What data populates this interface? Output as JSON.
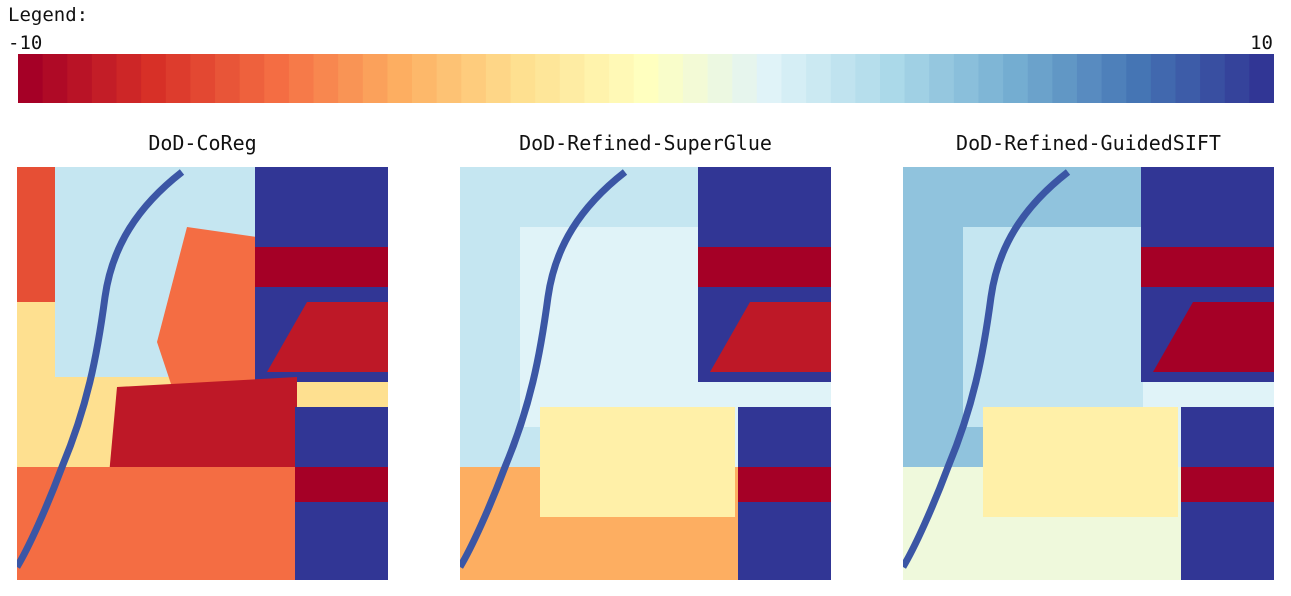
{
  "legend": {
    "title": "Legend:",
    "min_label": "-10",
    "max_label": "10",
    "min": -10,
    "max": 10,
    "steps": 51,
    "colormap": "RdYlBu"
  },
  "chart_data": {
    "type": "heatmap",
    "colorscale": {
      "min": -10,
      "max": 10,
      "colormap": "RdYlBu"
    },
    "panels": [
      {
        "title": "DoD-CoReg",
        "overall_bias": "red",
        "regions": [
          {
            "area": "top-left strip",
            "value": -7
          },
          {
            "area": "upper-center",
            "value": 3
          },
          {
            "area": "center-upper-right",
            "value": -6
          },
          {
            "area": "top-right block",
            "value": 10
          },
          {
            "area": "upper-right band",
            "value": -10
          },
          {
            "area": "right triangle",
            "value": -9
          },
          {
            "area": "center-lower",
            "value": -9
          },
          {
            "area": "lower-left",
            "value": -6
          },
          {
            "area": "lower-right block",
            "value": 10
          },
          {
            "area": "lower-right band",
            "value": -10
          },
          {
            "area": "river",
            "value": 9
          }
        ]
      },
      {
        "title": "DoD-Refined-SuperGlue",
        "overall_bias": "blue",
        "regions": [
          {
            "area": "upper field",
            "value": 3
          },
          {
            "area": "center",
            "value": 2
          },
          {
            "area": "top-right block",
            "value": 10
          },
          {
            "area": "upper-right band",
            "value": -10
          },
          {
            "area": "right triangle",
            "value": -9
          },
          {
            "area": "lower-left",
            "value": -4
          },
          {
            "area": "lower-center",
            "value": -1
          },
          {
            "area": "lower-right block",
            "value": 10
          },
          {
            "area": "lower-right band",
            "value": -10
          },
          {
            "area": "river",
            "value": 9
          }
        ]
      },
      {
        "title": "DoD-Refined-GuidedSIFT",
        "overall_bias": "blue",
        "regions": [
          {
            "area": "upper field",
            "value": 5
          },
          {
            "area": "center",
            "value": 3
          },
          {
            "area": "top-right block",
            "value": 10
          },
          {
            "area": "upper-right band",
            "value": -10
          },
          {
            "area": "right triangle",
            "value": -10
          },
          {
            "area": "lower-left",
            "value": 1
          },
          {
            "area": "lower-center",
            "value": -1
          },
          {
            "area": "lower-right block",
            "value": 10
          },
          {
            "area": "lower-right band",
            "value": -10
          },
          {
            "area": "river",
            "value": 9
          }
        ]
      }
    ]
  }
}
